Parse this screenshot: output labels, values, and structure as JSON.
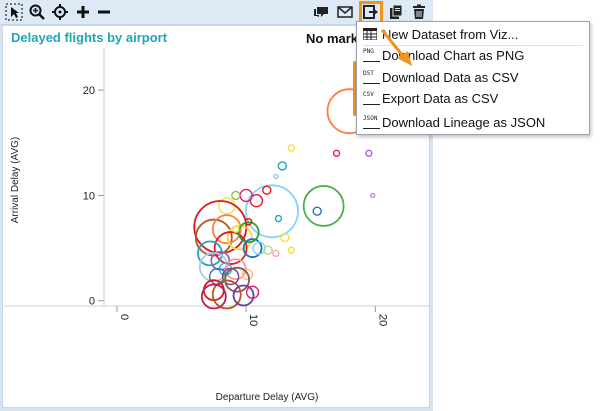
{
  "toolbar": {
    "left_icons": [
      "select-arrow-icon",
      "zoom-icon",
      "pan-icon",
      "plus-icon",
      "minus-icon"
    ],
    "right_icons": [
      "comment-icon",
      "mail-icon",
      "export-icon",
      "copy-icon",
      "trash-icon"
    ]
  },
  "panel": {
    "title": "Delayed flights by airport",
    "no_marks_label": "No marks"
  },
  "chart_data": {
    "type": "scatter",
    "title": "Delayed flights by airport",
    "xlabel": "Departure Delay (AVG)",
    "ylabel": "Arrival Delay (AVG)",
    "xlim": [
      -1,
      24
    ],
    "ylim": [
      -0.5,
      24
    ],
    "x_ticks": [
      "0",
      "10",
      "20"
    ],
    "y_ticks": [
      "0",
      "10",
      "20"
    ],
    "points": [
      {
        "x": 18,
        "y": 18,
        "r": 22,
        "color": "#ff7f3f"
      },
      {
        "x": 20.3,
        "y": 18,
        "r": 3,
        "color": "#7fd3ff"
      },
      {
        "x": 21,
        "y": 17,
        "r": 3,
        "color": "#ffa0b4"
      },
      {
        "x": 19.5,
        "y": 14,
        "r": 3,
        "color": "#b85cd6"
      },
      {
        "x": 17,
        "y": 14,
        "r": 3,
        "color": "#e31a77"
      },
      {
        "x": 19.8,
        "y": 10,
        "r": 2,
        "color": "#c08be0"
      },
      {
        "x": 16,
        "y": 9,
        "r": 20,
        "color": "#4caf50"
      },
      {
        "x": 15.5,
        "y": 8.5,
        "r": 4,
        "color": "#1f78b4"
      },
      {
        "x": 12,
        "y": 8.5,
        "r": 26,
        "color": "#7fd3ff"
      },
      {
        "x": 12.8,
        "y": 12.8,
        "r": 4,
        "color": "#1fa6b8"
      },
      {
        "x": 13.5,
        "y": 14.5,
        "r": 3,
        "color": "#f0e442"
      },
      {
        "x": 12.3,
        "y": 11.8,
        "r": 2,
        "color": "#7fd3ff"
      },
      {
        "x": 11.6,
        "y": 10.5,
        "r": 4,
        "color": "#e31a1c"
      },
      {
        "x": 10.8,
        "y": 9.5,
        "r": 6,
        "color": "#e31a1c"
      },
      {
        "x": 10,
        "y": 10,
        "r": 6,
        "color": "#e31a77"
      },
      {
        "x": 9.2,
        "y": 10,
        "r": 4,
        "color": "#8bc34a"
      },
      {
        "x": 8.5,
        "y": 9,
        "r": 8,
        "color": "#f0e442"
      },
      {
        "x": 8,
        "y": 7,
        "r": 26,
        "color": "#d7191c"
      },
      {
        "x": 7.5,
        "y": 6,
        "r": 18,
        "color": "#b15928"
      },
      {
        "x": 8.5,
        "y": 6.8,
        "r": 14,
        "color": "#ff7f3f"
      },
      {
        "x": 9.5,
        "y": 6,
        "r": 12,
        "color": "#ffd92f"
      },
      {
        "x": 8.8,
        "y": 5,
        "r": 16,
        "color": "#e31a1c"
      },
      {
        "x": 10.2,
        "y": 6.5,
        "r": 10,
        "color": "#2ca02c"
      },
      {
        "x": 10.5,
        "y": 5,
        "r": 9,
        "color": "#1f78b4"
      },
      {
        "x": 11,
        "y": 5,
        "r": 6,
        "color": "#7fd3ff"
      },
      {
        "x": 11.7,
        "y": 4.8,
        "r": 4,
        "color": "#b2df8a"
      },
      {
        "x": 12.3,
        "y": 4.5,
        "r": 3,
        "color": "#ffa0b4"
      },
      {
        "x": 13.5,
        "y": 4.8,
        "r": 3,
        "color": "#ffd92f"
      },
      {
        "x": 7.2,
        "y": 4.5,
        "r": 12,
        "color": "#1fa6b8"
      },
      {
        "x": 8,
        "y": 3.8,
        "r": 9,
        "color": "#9467bd"
      },
      {
        "x": 7.5,
        "y": 3.2,
        "r": 14,
        "color": "#aec7e8"
      },
      {
        "x": 9.2,
        "y": 3,
        "r": 10,
        "color": "#ff9896"
      },
      {
        "x": 8.4,
        "y": 3,
        "r": 6,
        "color": "#17becf"
      },
      {
        "x": 8.8,
        "y": 2.3,
        "r": 8,
        "color": "#6a3d9a"
      },
      {
        "x": 10.1,
        "y": 2.5,
        "r": 5,
        "color": "#ffbb78"
      },
      {
        "x": 7.8,
        "y": 2.3,
        "r": 8,
        "color": "#1f78b4"
      },
      {
        "x": 9.3,
        "y": 2,
        "r": 12,
        "color": "#8c564b"
      },
      {
        "x": 7.5,
        "y": 1,
        "r": 10,
        "color": "#d7191c"
      },
      {
        "x": 8.5,
        "y": 0.6,
        "r": 14,
        "color": "#b15928"
      },
      {
        "x": 7.5,
        "y": 0.4,
        "r": 12,
        "color": "#c2185b"
      },
      {
        "x": 9.8,
        "y": 0.5,
        "r": 10,
        "color": "#6a3d9a"
      },
      {
        "x": 10.5,
        "y": 0.8,
        "r": 6,
        "color": "#e31a77"
      },
      {
        "x": 9.2,
        "y": 6.8,
        "r": 3,
        "color": "#f0e442"
      },
      {
        "x": 10.2,
        "y": 7.5,
        "r": 3,
        "color": "#e31a1c"
      },
      {
        "x": 13,
        "y": 6,
        "r": 4,
        "color": "#ffd92f"
      },
      {
        "x": 12.5,
        "y": 7.8,
        "r": 3,
        "color": "#1fa6b8"
      }
    ]
  },
  "menu": {
    "items": [
      {
        "icon_text": "▥",
        "label": "New Dataset from Viz..."
      },
      {
        "icon_text": "PNG",
        "label": "Download Chart as PNG"
      },
      {
        "icon_text": "DST",
        "label": "Download Data as CSV"
      },
      {
        "icon_text": "CSV",
        "label": "Export Data as CSV"
      },
      {
        "icon_text": "JSON",
        "label": "Download Lineage as JSON"
      }
    ]
  },
  "colors": {
    "accent_orange": "#f0941f",
    "title_teal": "#1fa6b8",
    "toolbar_bg": "#dde9f5"
  }
}
